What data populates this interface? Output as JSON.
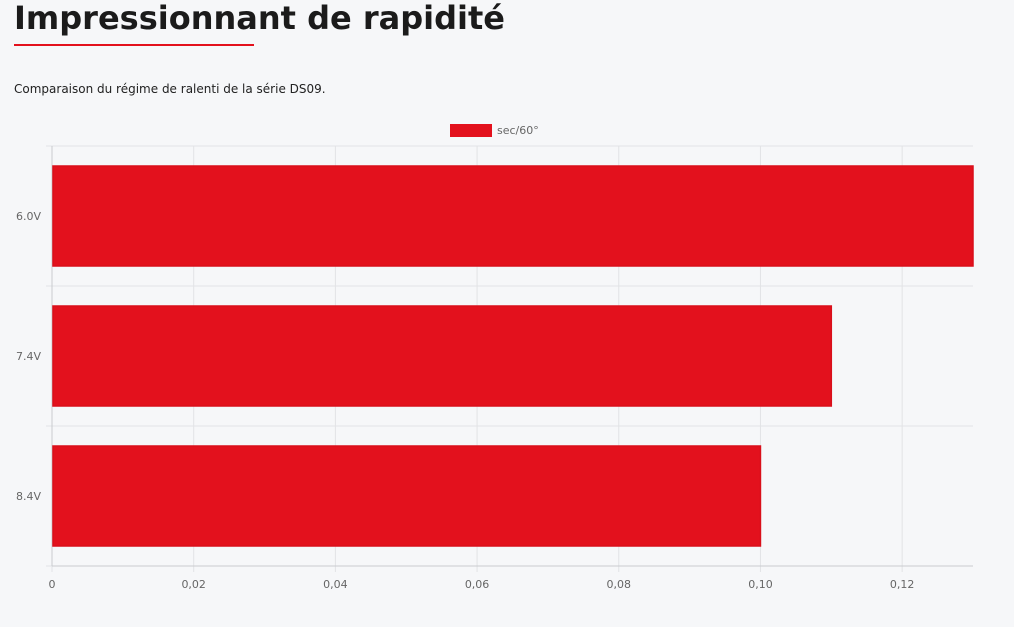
{
  "page": {
    "title": "Impressionnant de rapidité",
    "subtitle": "Comparaison du régime de ralenti de la série DS09."
  },
  "colors": {
    "accent": "#e3111d",
    "grid": "#e2e3e6",
    "axis": "#c9cbcf",
    "text": "#666666"
  },
  "chart_data": {
    "type": "bar",
    "orientation": "horizontal",
    "categories": [
      "6.0V",
      "7.4V",
      "8.4V"
    ],
    "series": [
      {
        "name": "sec/60°",
        "values": [
          0.13,
          0.11,
          0.1
        ],
        "color": "#e3111d"
      }
    ],
    "xlim": [
      0,
      0.13
    ],
    "xticks": [
      0,
      0.02,
      0.04,
      0.06,
      0.08,
      0.1,
      0.12
    ],
    "xtick_labels": [
      "0",
      "0,02",
      "0,04",
      "0,06",
      "0,08",
      "0,10",
      "0,12"
    ],
    "grid": true,
    "legend_position": "top-center"
  }
}
